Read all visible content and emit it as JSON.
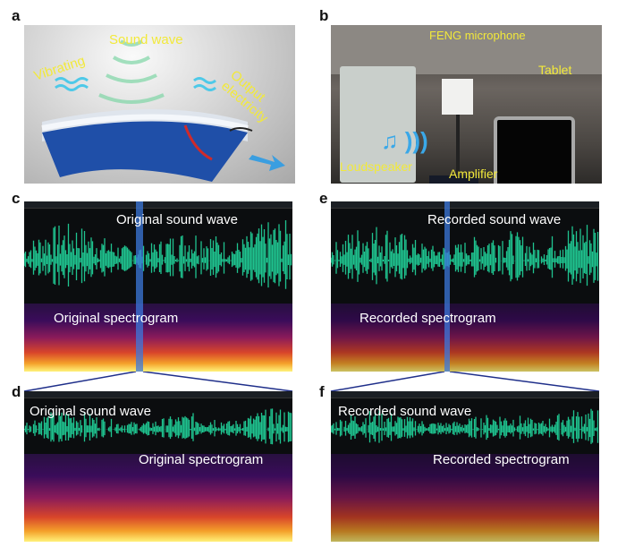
{
  "panel_labels": {
    "a": "a",
    "b": "b",
    "c": "c",
    "d": "d",
    "e": "e",
    "f": "f"
  },
  "panel_a": {
    "sound_wave": "Sound wave",
    "vibrating": "Vibrating",
    "output": "Output electricity"
  },
  "panel_b": {
    "microphone": "FENG microphone",
    "tablet": "Tablet",
    "loudspeaker": "Loudspeaker",
    "amplifier": "Amplifier"
  },
  "panel_c": {
    "wave": "Original sound wave",
    "spectrogram": "Original spectrogram"
  },
  "panel_d": {
    "wave": "Original sound wave",
    "spectrogram": "Original spectrogram"
  },
  "panel_e": {
    "wave": "Recorded sound wave",
    "spectrogram": "Recorded spectrogram"
  },
  "panel_f": {
    "wave": "Recorded sound wave",
    "spectrogram": "Recorded spectrogram"
  },
  "colors": {
    "waveform": "#1fc38f",
    "highlight": "#3c78dc",
    "label_yellow": "#f2e93a",
    "connector": "#1f2f8a"
  }
}
